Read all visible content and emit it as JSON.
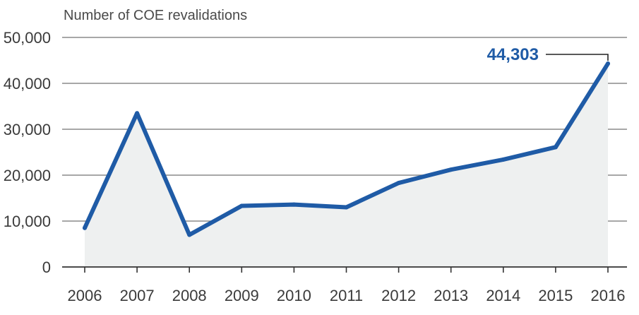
{
  "chart_data": {
    "type": "area",
    "ylabel": "Number of COE revalidations",
    "x": [
      "2006",
      "2007",
      "2008",
      "2009",
      "2010",
      "2011",
      "2012",
      "2013",
      "2014",
      "2015",
      "2016"
    ],
    "values": [
      8500,
      33500,
      7000,
      13300,
      13600,
      13000,
      18300,
      21200,
      23400,
      26100,
      44303
    ],
    "ylim": [
      0,
      50000
    ],
    "yticks": [
      0,
      10000,
      20000,
      30000,
      40000,
      50000
    ],
    "ytick_labels": [
      "0",
      "10,000",
      "20,000",
      "30,000",
      "40,000",
      "50,000"
    ],
    "grid": true,
    "annotation": {
      "label": "44,303",
      "x": "2016",
      "value": 44303
    },
    "colors": {
      "line": "#1f5ba6",
      "fill": "#eef0f0",
      "grid": "#8a8a8a",
      "axis": "#333333"
    }
  }
}
